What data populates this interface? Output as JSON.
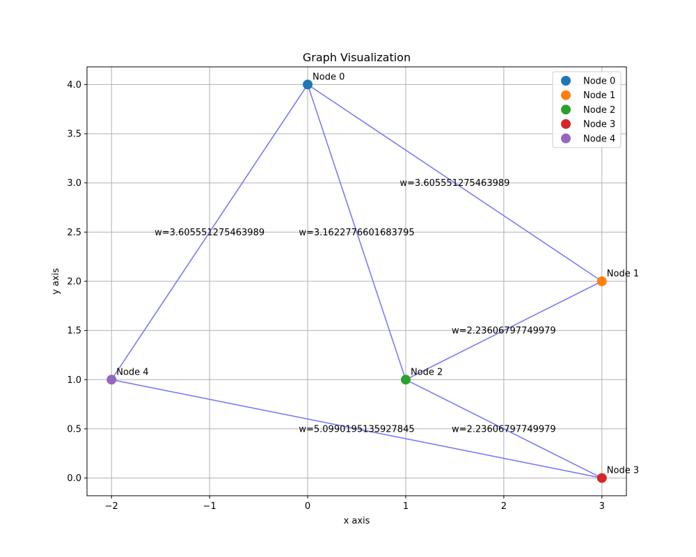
{
  "chart_data": {
    "type": "scatter",
    "title": "Graph Visualization",
    "xlabel": "x axis",
    "ylabel": "y axis",
    "xlim": [
      -2.25,
      3.25
    ],
    "ylim": [
      -0.18,
      4.18
    ],
    "xticks": [
      -2,
      -1,
      0,
      1,
      2,
      3
    ],
    "xtick_labels": [
      "−2",
      "−1",
      "0",
      "1",
      "2",
      "3"
    ],
    "yticks": [
      0.0,
      0.5,
      1.0,
      1.5,
      2.0,
      2.5,
      3.0,
      3.5,
      4.0
    ],
    "ytick_labels": [
      "0.0",
      "0.5",
      "1.0",
      "1.5",
      "2.0",
      "2.5",
      "3.0",
      "3.5",
      "4.0"
    ],
    "grid": true,
    "legend_position": "top-right",
    "edge_color": "#7a7af5",
    "nodes": [
      {
        "name": "Node 0",
        "x": 0,
        "y": 4,
        "color": "#1f77b4"
      },
      {
        "name": "Node 1",
        "x": 3,
        "y": 2,
        "color": "#ff7f0e"
      },
      {
        "name": "Node 2",
        "x": 1,
        "y": 1,
        "color": "#2ca02c"
      },
      {
        "name": "Node 3",
        "x": 3,
        "y": 0,
        "color": "#d62728"
      },
      {
        "name": "Node 4",
        "x": -2,
        "y": 1,
        "color": "#9467bd"
      }
    ],
    "edges": [
      {
        "source": 0,
        "target": 1,
        "label": "w=3.605551275463989"
      },
      {
        "source": 0,
        "target": 2,
        "label": "w=3.1622776601683795"
      },
      {
        "source": 0,
        "target": 4,
        "label": "w=3.605551275463989"
      },
      {
        "source": 1,
        "target": 2,
        "label": "w=2.23606797749979"
      },
      {
        "source": 2,
        "target": 3,
        "label": "w=2.23606797749979"
      },
      {
        "source": 3,
        "target": 4,
        "label": "w=5.0990195135927845"
      }
    ]
  }
}
